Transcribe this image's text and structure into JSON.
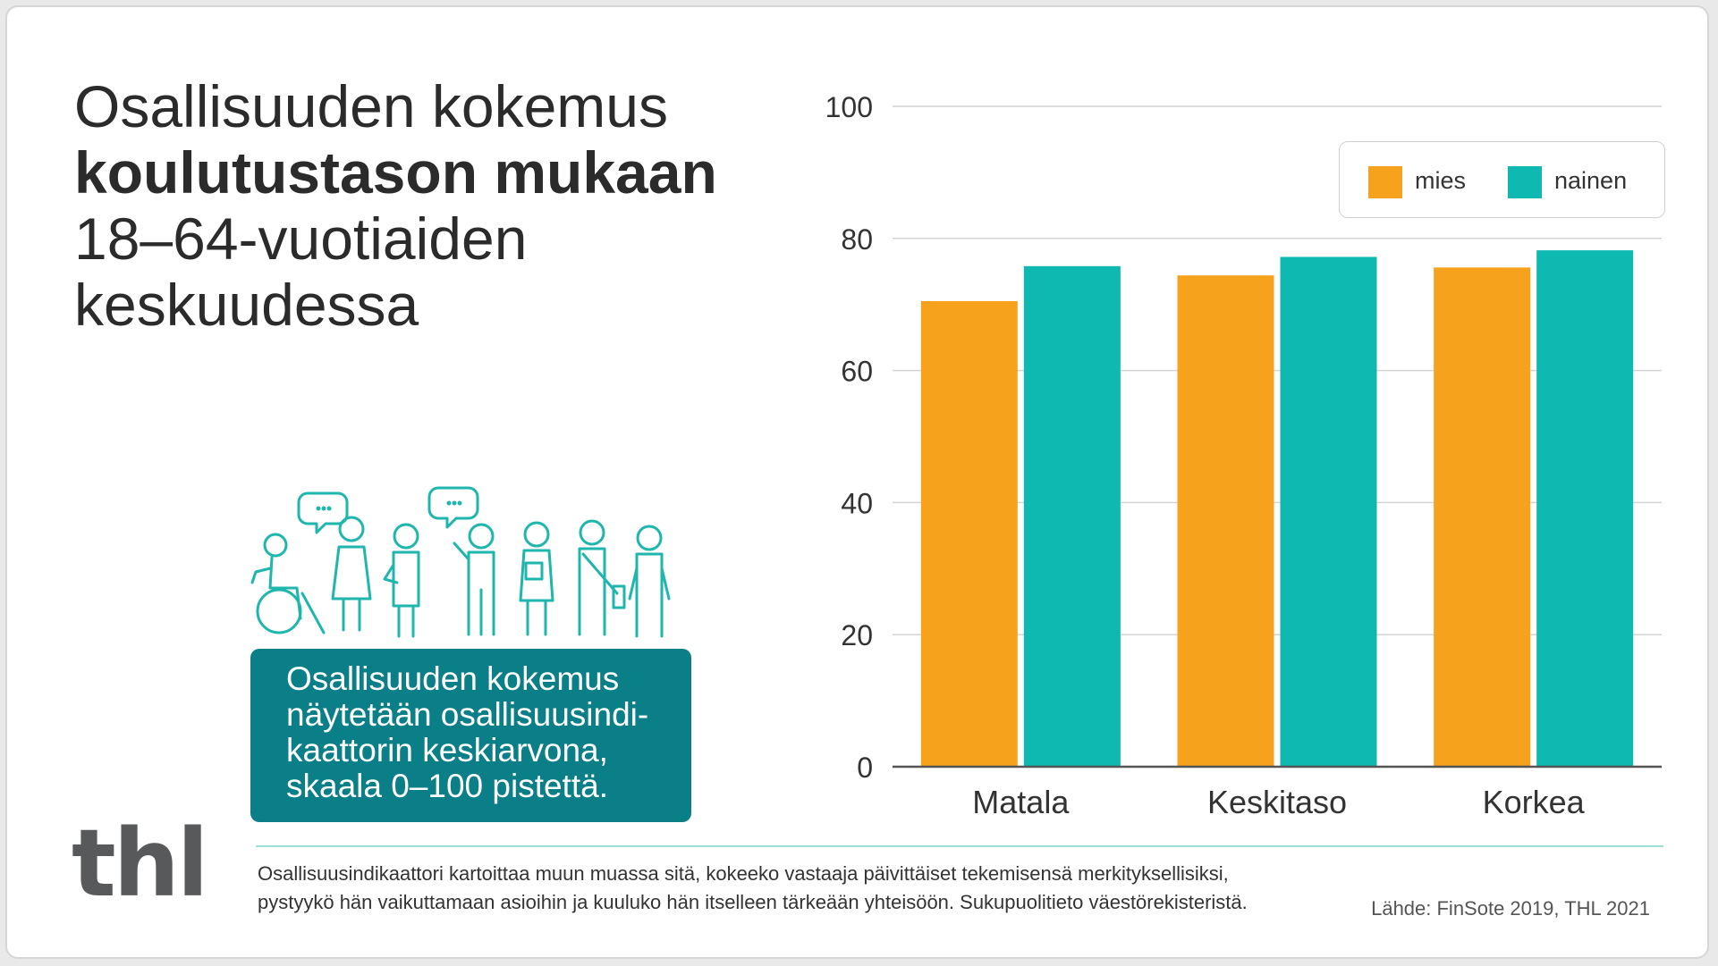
{
  "title": {
    "line1": "Osallisuuden kokemus",
    "line2": "koulutustason mukaan",
    "line3": "18–64-vuotiaiden",
    "line4": "keskuudessa"
  },
  "info_box": "Osallisuuden kokemus\nnäytetään osallisuusindi-\nkaattorin keskiarvona,\n skaala 0–100 pistettä.",
  "footnote": "Osallisuusindikaattori kartoittaa muun muassa sitä, kokeeko vastaaja päivittäiset tekemisensä merkityksellisiksi,\npystyykö hän vaikuttamaan asioihin ja kuuluko hän itselleen tärkeään yhteisöön. Sukupuolitieto väestörekisteristä.",
  "source": "Lähde: FinSote 2019, THL 2021",
  "logo": "thl",
  "colors": {
    "mies": "#f7a21d",
    "nainen": "#0db9b1",
    "teal_box": "#0a7f87",
    "people_stroke": "#1fb6ae"
  },
  "chart_data": {
    "type": "bar",
    "title": "",
    "categories": [
      "Matala",
      "Keskitaso",
      "Korkea"
    ],
    "series": [
      {
        "name": "mies",
        "values": [
          70.5,
          74.4,
          75.6
        ]
      },
      {
        "name": "nainen",
        "values": [
          75.8,
          77.2,
          78.2
        ]
      }
    ],
    "ylim": [
      0,
      100
    ],
    "yticks": [
      0,
      20,
      40,
      60,
      80,
      100
    ],
    "grid": true,
    "legend": "top-right",
    "xlabel": "",
    "ylabel": ""
  }
}
